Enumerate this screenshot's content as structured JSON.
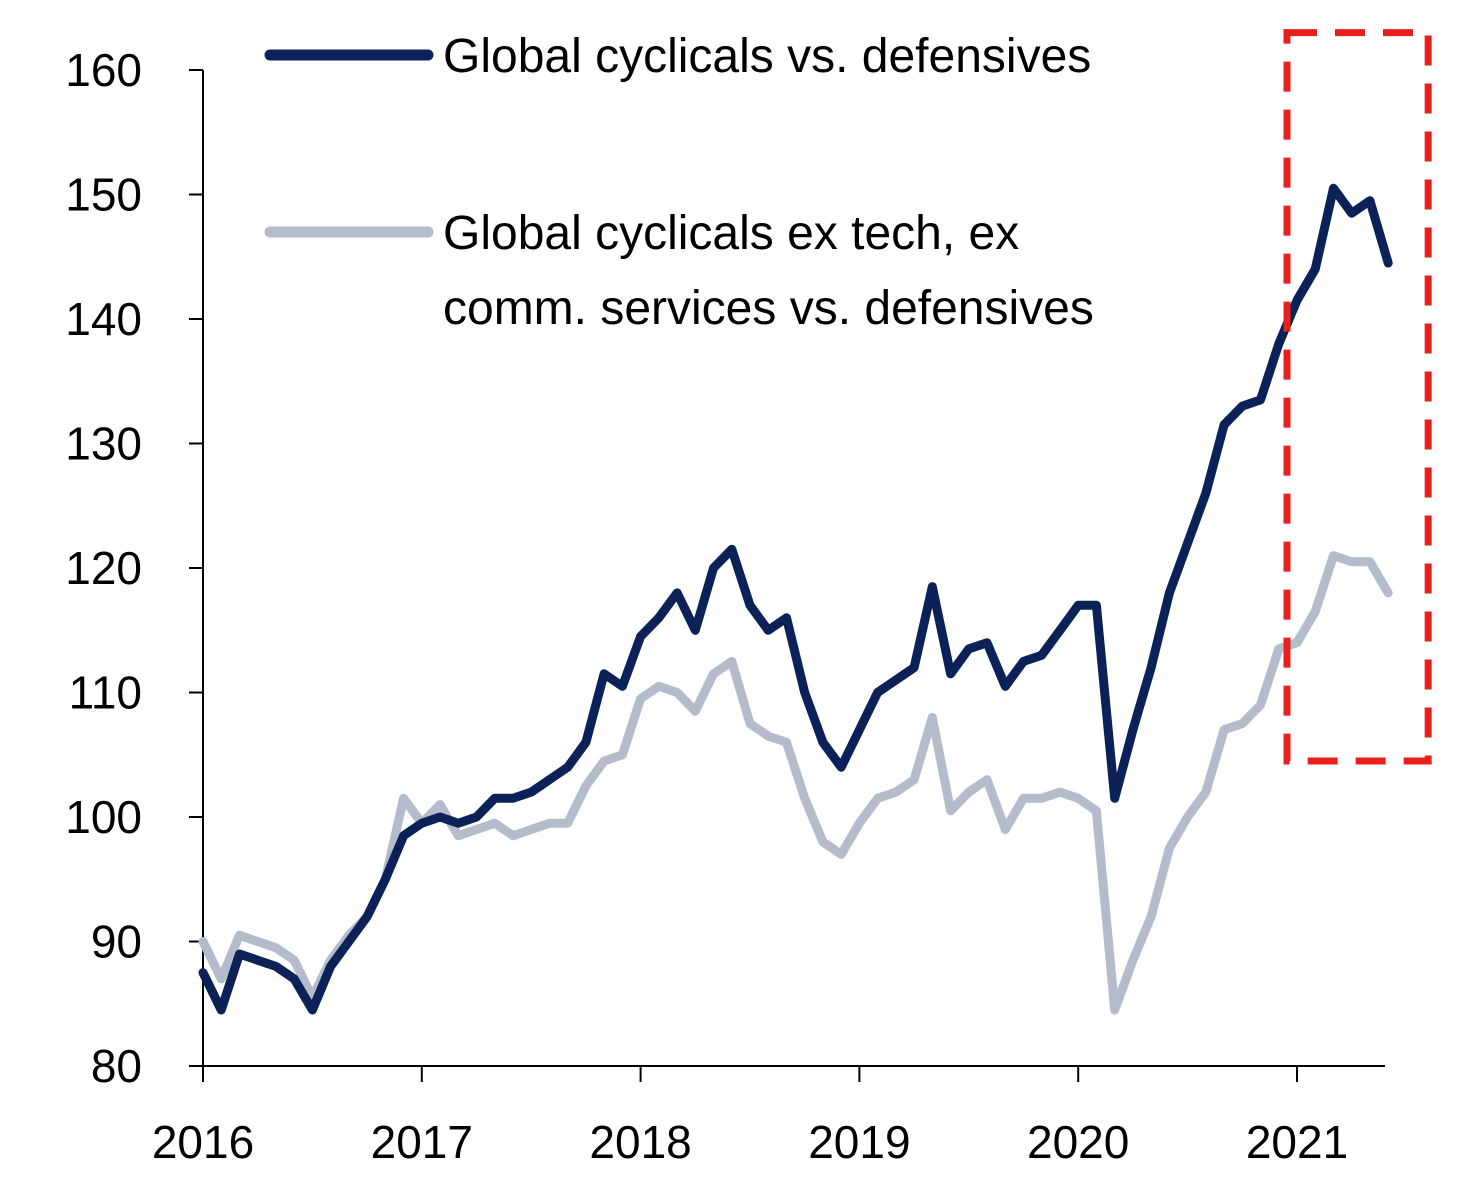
{
  "chart_data": {
    "type": "line",
    "title": "",
    "xlabel": "",
    "ylabel": "",
    "ylim": [
      80,
      160
    ],
    "y_ticks": [
      "80",
      "90",
      "100",
      "110",
      "120",
      "130",
      "140",
      "150",
      "160"
    ],
    "x_ticks": [
      "2016",
      "2017",
      "2018",
      "2019",
      "2020",
      "2021"
    ],
    "xlim": [
      "2016-01",
      "2021-06"
    ],
    "grid": false,
    "legend_position": "top",
    "highlight": {
      "type": "dashed-box",
      "color": "#e8201c",
      "x_range": [
        "2021-01",
        "2021-06"
      ],
      "y_range": [
        104.5,
        163
      ]
    },
    "series": [
      {
        "name": "Global cyclicals vs. defensives",
        "color": "#0c2157",
        "legend_lines": [
          "Global cyclicals vs. defensives"
        ],
        "points": [
          [
            "2016-01",
            87.5
          ],
          [
            "2016-02",
            84.5
          ],
          [
            "2016-03",
            89
          ],
          [
            "2016-04",
            88.5
          ],
          [
            "2016-05",
            88
          ],
          [
            "2016-06",
            87
          ],
          [
            "2016-07",
            84.5
          ],
          [
            "2016-08",
            88
          ],
          [
            "2016-09",
            90
          ],
          [
            "2016-10",
            92
          ],
          [
            "2016-11",
            95
          ],
          [
            "2016-12",
            98.5
          ],
          [
            "2017-01",
            99.5
          ],
          [
            "2017-02",
            100
          ],
          [
            "2017-03",
            99.5
          ],
          [
            "2017-04",
            100
          ],
          [
            "2017-05",
            101.5
          ],
          [
            "2017-06",
            101.5
          ],
          [
            "2017-07",
            102
          ],
          [
            "2017-08",
            103
          ],
          [
            "2017-09",
            104
          ],
          [
            "2017-10",
            106
          ],
          [
            "2017-11",
            111.5
          ],
          [
            "2017-12",
            110.5
          ],
          [
            "2018-01",
            114.5
          ],
          [
            "2018-02",
            116
          ],
          [
            "2018-03",
            118
          ],
          [
            "2018-04",
            115
          ],
          [
            "2018-05",
            120
          ],
          [
            "2018-06",
            121.5
          ],
          [
            "2018-07",
            117
          ],
          [
            "2018-08",
            115
          ],
          [
            "2018-09",
            116
          ],
          [
            "2018-10",
            110
          ],
          [
            "2018-11",
            106
          ],
          [
            "2018-12",
            104
          ],
          [
            "2019-01",
            107
          ],
          [
            "2019-02",
            110
          ],
          [
            "2019-03",
            111
          ],
          [
            "2019-04",
            112
          ],
          [
            "2019-05",
            118.5
          ],
          [
            "2019-06",
            111.5
          ],
          [
            "2019-07",
            113.5
          ],
          [
            "2019-08",
            114
          ],
          [
            "2019-09",
            110.5
          ],
          [
            "2019-10",
            112.5
          ],
          [
            "2019-11",
            113
          ],
          [
            "2019-12",
            115
          ],
          [
            "2020-01",
            117
          ],
          [
            "2020-02",
            117
          ],
          [
            "2020-03",
            101.5
          ],
          [
            "2020-04",
            107
          ],
          [
            "2020-05",
            112
          ],
          [
            "2020-06",
            118
          ],
          [
            "2020-07",
            122
          ],
          [
            "2020-08",
            126
          ],
          [
            "2020-09",
            131.5
          ],
          [
            "2020-10",
            133
          ],
          [
            "2020-11",
            133.5
          ],
          [
            "2020-12",
            138
          ],
          [
            "2021-01",
            141.5
          ],
          [
            "2021-02",
            144
          ],
          [
            "2021-03",
            150.5
          ],
          [
            "2021-04",
            148.5
          ],
          [
            "2021-05",
            149.5
          ],
          [
            "2021-06",
            144.5
          ]
        ]
      },
      {
        "name": "Global cyclicals ex tech, ex comm. services vs. defensives",
        "color": "#b4bccb",
        "legend_lines": [
          "Global cyclicals ex tech, ex",
          "comm. services vs. defensives"
        ],
        "points": [
          [
            "2016-01",
            90
          ],
          [
            "2016-02",
            87
          ],
          [
            "2016-03",
            90.5
          ],
          [
            "2016-04",
            90
          ],
          [
            "2016-05",
            89.5
          ],
          [
            "2016-06",
            88.5
          ],
          [
            "2016-07",
            85.5
          ],
          [
            "2016-08",
            88.5
          ],
          [
            "2016-09",
            90.5
          ],
          [
            "2016-10",
            92
          ],
          [
            "2016-11",
            95
          ],
          [
            "2016-12",
            101.5
          ],
          [
            "2017-01",
            99.5
          ],
          [
            "2017-02",
            101
          ],
          [
            "2017-03",
            98.5
          ],
          [
            "2017-04",
            99
          ],
          [
            "2017-05",
            99.5
          ],
          [
            "2017-06",
            98.5
          ],
          [
            "2017-07",
            99
          ],
          [
            "2017-08",
            99.5
          ],
          [
            "2017-09",
            99.5
          ],
          [
            "2017-10",
            102.5
          ],
          [
            "2017-11",
            104.5
          ],
          [
            "2017-12",
            105
          ],
          [
            "2018-01",
            109.5
          ],
          [
            "2018-02",
            110.5
          ],
          [
            "2018-03",
            110
          ],
          [
            "2018-04",
            108.5
          ],
          [
            "2018-05",
            111.5
          ],
          [
            "2018-06",
            112.5
          ],
          [
            "2018-07",
            107.5
          ],
          [
            "2018-08",
            106.5
          ],
          [
            "2018-09",
            106
          ],
          [
            "2018-10",
            101.5
          ],
          [
            "2018-11",
            98
          ],
          [
            "2018-12",
            97
          ],
          [
            "2019-01",
            99.5
          ],
          [
            "2019-02",
            101.5
          ],
          [
            "2019-03",
            102
          ],
          [
            "2019-04",
            103
          ],
          [
            "2019-05",
            108
          ],
          [
            "2019-06",
            100.5
          ],
          [
            "2019-07",
            102
          ],
          [
            "2019-08",
            103
          ],
          [
            "2019-09",
            99
          ],
          [
            "2019-10",
            101.5
          ],
          [
            "2019-11",
            101.5
          ],
          [
            "2019-12",
            102
          ],
          [
            "2020-01",
            101.5
          ],
          [
            "2020-02",
            100.5
          ],
          [
            "2020-03",
            84.5
          ],
          [
            "2020-04",
            88.5
          ],
          [
            "2020-05",
            92
          ],
          [
            "2020-06",
            97.5
          ],
          [
            "2020-07",
            100
          ],
          [
            "2020-08",
            102
          ],
          [
            "2020-09",
            107
          ],
          [
            "2020-10",
            107.5
          ],
          [
            "2020-11",
            109
          ],
          [
            "2020-12",
            113.5
          ],
          [
            "2021-01",
            114
          ],
          [
            "2021-02",
            116.5
          ],
          [
            "2021-03",
            121
          ],
          [
            "2021-04",
            120.5
          ],
          [
            "2021-05",
            120.5
          ],
          [
            "2021-06",
            118
          ]
        ]
      }
    ]
  }
}
